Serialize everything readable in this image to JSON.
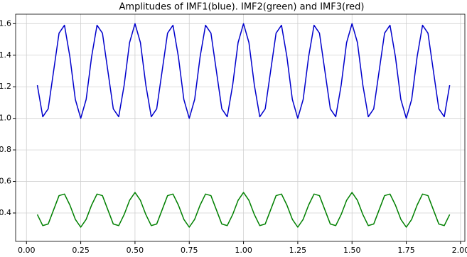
{
  "chart_data": {
    "type": "line",
    "title": "Amplitudes of IMF1(blue). IMF2(green) and IMF3(red)",
    "x": [
      0.05,
      0.075,
      0.1,
      0.125,
      0.15,
      0.175,
      0.2,
      0.225,
      0.25,
      0.275,
      0.3,
      0.325,
      0.35,
      0.375,
      0.4,
      0.425,
      0.45,
      0.475,
      0.5,
      0.525,
      0.55,
      0.575,
      0.6,
      0.625,
      0.65,
      0.675,
      0.7,
      0.725,
      0.75,
      0.775,
      0.8,
      0.825,
      0.85,
      0.875,
      0.9,
      0.925,
      0.95,
      0.975,
      1.0,
      1.025,
      1.05,
      1.075,
      1.1,
      1.125,
      1.15,
      1.175,
      1.2,
      1.225,
      1.25,
      1.275,
      1.3,
      1.325,
      1.35,
      1.375,
      1.4,
      1.425,
      1.45,
      1.475,
      1.5,
      1.525,
      1.55,
      1.575,
      1.6,
      1.625,
      1.65,
      1.675,
      1.7,
      1.725,
      1.75,
      1.775,
      1.8,
      1.825,
      1.85,
      1.875,
      1.9,
      1.925,
      1.95
    ],
    "series": [
      {
        "name": "IMF1",
        "color": "#0000cc",
        "values": [
          1.21,
          1.01,
          1.06,
          1.3,
          1.54,
          1.59,
          1.39,
          1.12,
          1.0,
          1.12,
          1.39,
          1.59,
          1.54,
          1.3,
          1.06,
          1.01,
          1.21,
          1.48,
          1.6,
          1.48,
          1.21,
          1.01,
          1.06,
          1.3,
          1.54,
          1.59,
          1.39,
          1.12,
          1.0,
          1.12,
          1.39,
          1.59,
          1.54,
          1.3,
          1.06,
          1.01,
          1.21,
          1.48,
          1.6,
          1.48,
          1.21,
          1.01,
          1.06,
          1.3,
          1.54,
          1.59,
          1.39,
          1.12,
          1.0,
          1.12,
          1.39,
          1.59,
          1.54,
          1.3,
          1.06,
          1.01,
          1.21,
          1.48,
          1.6,
          1.48,
          1.21,
          1.01,
          1.06,
          1.3,
          1.54,
          1.59,
          1.39,
          1.12,
          1.0,
          1.12,
          1.39,
          1.59,
          1.54,
          1.3,
          1.06,
          1.01,
          1.21
        ]
      },
      {
        "name": "IMF2",
        "color": "#008000",
        "values": [
          0.39,
          0.32,
          0.33,
          0.42,
          0.51,
          0.52,
          0.45,
          0.36,
          0.31,
          0.36,
          0.45,
          0.52,
          0.51,
          0.42,
          0.33,
          0.32,
          0.39,
          0.48,
          0.53,
          0.48,
          0.39,
          0.32,
          0.33,
          0.42,
          0.51,
          0.52,
          0.45,
          0.36,
          0.31,
          0.36,
          0.45,
          0.52,
          0.51,
          0.42,
          0.33,
          0.32,
          0.39,
          0.48,
          0.53,
          0.48,
          0.39,
          0.32,
          0.33,
          0.42,
          0.51,
          0.52,
          0.45,
          0.36,
          0.31,
          0.36,
          0.45,
          0.52,
          0.51,
          0.42,
          0.33,
          0.32,
          0.39,
          0.48,
          0.53,
          0.48,
          0.39,
          0.32,
          0.33,
          0.42,
          0.51,
          0.52,
          0.45,
          0.36,
          0.31,
          0.36,
          0.45,
          0.52,
          0.51,
          0.42,
          0.33,
          0.32,
          0.39
        ]
      }
    ],
    "xlim": [
      -0.05,
      2.02
    ],
    "xticks": [
      {
        "value": 0,
        "label": "0.00"
      },
      {
        "value": 0.25,
        "label": "0.25"
      },
      {
        "value": 0.5,
        "label": "0.50"
      },
      {
        "value": 0.75,
        "label": "0.75"
      },
      {
        "value": 1,
        "label": "1.00"
      },
      {
        "value": 1.25,
        "label": "1.25"
      },
      {
        "value": 1.5,
        "label": "1.50"
      },
      {
        "value": 1.75,
        "label": "1.75"
      },
      {
        "value": 2,
        "label": "2.00"
      }
    ],
    "ylim": [
      0.22,
      1.66
    ],
    "yticks": [
      0.4,
      0.6,
      0.8,
      {
        "value": 1,
        "label": "1.0"
      },
      1.2,
      1.4,
      1.6
    ],
    "grid": true
  }
}
